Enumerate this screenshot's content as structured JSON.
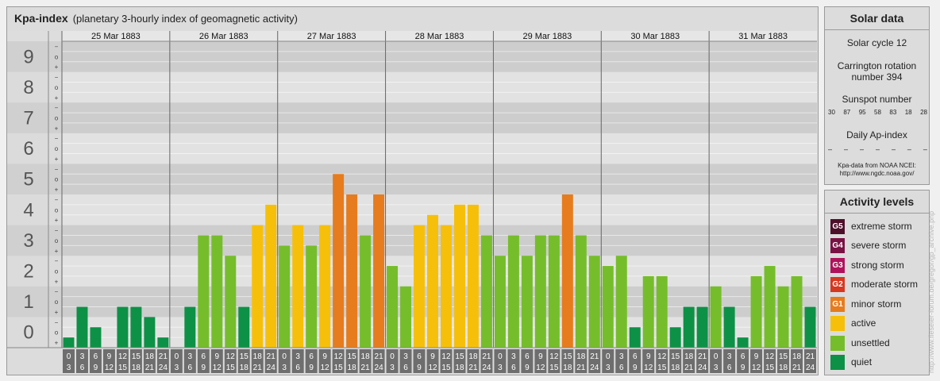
{
  "header": {
    "title": "Kpa-index",
    "subtitle": "(planetary 3-hourly index of geomagnetic activity)"
  },
  "chart_data": {
    "type": "bar",
    "y_ticks": [
      "0",
      "1",
      "2",
      "3",
      "4",
      "5",
      "6",
      "7",
      "8",
      "9"
    ],
    "minor_marks": [
      "+",
      "o",
      "−"
    ],
    "ylim": [
      0,
      9
    ],
    "days": [
      "25 Mar 1883",
      "26 Mar 1883",
      "27 Mar 1883",
      "28 Mar 1883",
      "29 Mar 1883",
      "30 Mar 1883",
      "31 Mar 1883"
    ],
    "interval_labels": [
      [
        "0",
        "3"
      ],
      [
        "3",
        "6"
      ],
      [
        "6",
        "9"
      ],
      [
        "9",
        "12"
      ],
      [
        "12",
        "15"
      ],
      [
        "15",
        "18"
      ],
      [
        "18",
        "21"
      ],
      [
        "21",
        "24"
      ]
    ],
    "values": [
      [
        0.333,
        1.333,
        0.667,
        0,
        1.333,
        1.333,
        1,
        0.333
      ],
      [
        0,
        1.333,
        3.667,
        3.667,
        3,
        1.333,
        4,
        4.667
      ],
      [
        3.333,
        4,
        3.333,
        4,
        5.667,
        5,
        3.667,
        5
      ],
      [
        2.667,
        2,
        4,
        4.333,
        4,
        4.667,
        4.667,
        3.667
      ],
      [
        3,
        3.667,
        3,
        3.667,
        3.667,
        5,
        3.667,
        3
      ],
      [
        2.667,
        3,
        0.667,
        2.333,
        2.333,
        0.667,
        1.333,
        1.333
      ],
      [
        2,
        1.333,
        0.333,
        2.333,
        2.667,
        2,
        2.333,
        1.333
      ]
    ]
  },
  "solar": {
    "title": "Solar data",
    "cycle": "Solar cycle 12",
    "carrington_line1": "Carrington rotation",
    "carrington_line2": "number 394",
    "sunspot_title": "Sunspot number",
    "sunspots": [
      "30",
      "87",
      "95",
      "58",
      "83",
      "18",
      "28"
    ],
    "ap_title": "Daily Ap-index",
    "ap_values": [
      "–",
      "–",
      "–",
      "–",
      "–",
      "–",
      "–"
    ],
    "source_line1": "Kpa-data from NOAA NCEI:",
    "source_line2": "http://www.ngdc.noaa.gov/"
  },
  "activity": {
    "title": "Activity levels",
    "levels": [
      {
        "badge": "G5",
        "label": "extreme storm",
        "color": "#4d0f2a"
      },
      {
        "badge": "G4",
        "label": "severe storm",
        "color": "#7a1244"
      },
      {
        "badge": "G3",
        "label": "strong storm",
        "color": "#b0135c"
      },
      {
        "badge": "G2",
        "label": "moderate storm",
        "color": "#d63820"
      },
      {
        "badge": "G1",
        "label": "minor storm",
        "color": "#e67c1e"
      },
      {
        "badge": "",
        "label": "active",
        "color": "#f6c00a"
      },
      {
        "badge": "",
        "label": "unsettled",
        "color": "#76bd2b"
      },
      {
        "badge": "",
        "label": "quiet",
        "color": "#0d9146"
      }
    ]
  },
  "watermark": "http://www.fieseler-forum.de/gregor/gp_archive.php"
}
